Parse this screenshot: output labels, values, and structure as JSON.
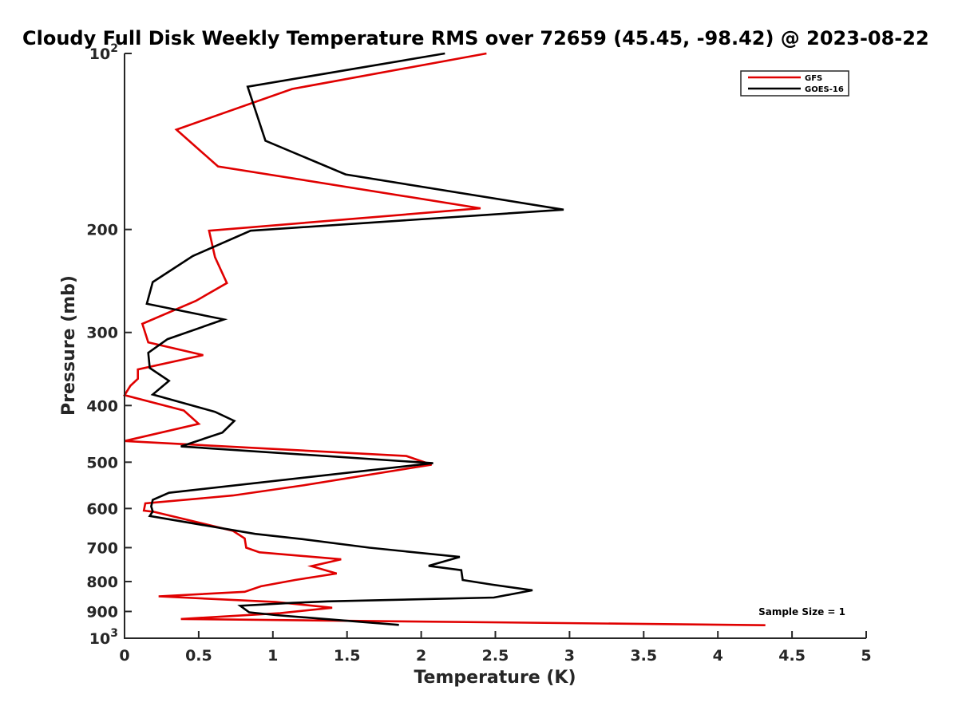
{
  "chart_data": {
    "type": "line",
    "title": "Cloudy Full Disk Weekly Temperature RMS over 72659 (45.45, -98.42) @ 2023-08-22",
    "xlabel": "Temperature (K)",
    "ylabel": "Pressure (mb)",
    "xlim": [
      0,
      5
    ],
    "ylim": [
      100,
      1000
    ],
    "y_scale": "log",
    "y_reversed": true,
    "x_ticks": [
      "0",
      "0.5",
      "1",
      "1.5",
      "2",
      "2.5",
      "3",
      "3.5",
      "4",
      "4.5",
      "5"
    ],
    "y_ticks": [
      {
        "value": 100,
        "base": "10",
        "exp": "2"
      },
      {
        "value": 200,
        "label": "200"
      },
      {
        "value": 300,
        "label": "300"
      },
      {
        "value": 400,
        "label": "400"
      },
      {
        "value": 500,
        "label": "500"
      },
      {
        "value": 600,
        "label": "600"
      },
      {
        "value": 700,
        "label": "700"
      },
      {
        "value": 800,
        "label": "800"
      },
      {
        "value": 900,
        "label": "900"
      },
      {
        "value": 1000,
        "base": "10",
        "exp": "3"
      }
    ],
    "legend_position": "top-right",
    "annotation": "Sample Size = 1",
    "grid": false,
    "series": [
      {
        "name": "GFS",
        "color": "#e00000",
        "points": [
          [
            2.44,
            100
          ],
          [
            1.13,
            115
          ],
          [
            0.35,
            135
          ],
          [
            0.63,
            156
          ],
          [
            2.4,
            184
          ],
          [
            0.57,
            201
          ],
          [
            0.61,
            223
          ],
          [
            0.69,
            247
          ],
          [
            0.48,
            265
          ],
          [
            0.12,
            290
          ],
          [
            0.16,
            312
          ],
          [
            0.53,
            328
          ],
          [
            0.09,
            347
          ],
          [
            0.09,
            360
          ],
          [
            0.04,
            370
          ],
          [
            0.0,
            384
          ],
          [
            0.4,
            408
          ],
          [
            0.5,
            430
          ],
          [
            0.0,
            460
          ],
          [
            1.9,
            488
          ],
          [
            2.07,
            505
          ],
          [
            1.2,
            548
          ],
          [
            0.73,
            570
          ],
          [
            0.14,
            588
          ],
          [
            0.13,
            605
          ],
          [
            0.2,
            608
          ],
          [
            0.73,
            655
          ],
          [
            0.81,
            675
          ],
          [
            0.82,
            700
          ],
          [
            0.91,
            713
          ],
          [
            1.46,
            733
          ],
          [
            1.26,
            753
          ],
          [
            1.43,
            775
          ],
          [
            1.15,
            795
          ],
          [
            0.92,
            815
          ],
          [
            0.81,
            833
          ],
          [
            0.23,
            848
          ],
          [
            1.02,
            867
          ],
          [
            1.4,
            887
          ],
          [
            1.05,
            906
          ],
          [
            0.38,
            927
          ],
          [
            4.32,
            950
          ]
        ]
      },
      {
        "name": "GOES-16",
        "color": "#000000",
        "points": [
          [
            2.16,
            100
          ],
          [
            0.83,
            114
          ],
          [
            0.95,
            141
          ],
          [
            1.49,
            161
          ],
          [
            2.96,
            185
          ],
          [
            0.85,
            201
          ],
          [
            0.46,
            222
          ],
          [
            0.19,
            246
          ],
          [
            0.15,
            268
          ],
          [
            0.67,
            285
          ],
          [
            0.29,
            308
          ],
          [
            0.16,
            325
          ],
          [
            0.17,
            345
          ],
          [
            0.3,
            363
          ],
          [
            0.19,
            383
          ],
          [
            0.61,
            410
          ],
          [
            0.74,
            425
          ],
          [
            0.66,
            445
          ],
          [
            0.38,
            470
          ],
          [
            2.08,
            502
          ],
          [
            0.3,
            564
          ],
          [
            0.19,
            580
          ],
          [
            0.18,
            595
          ],
          [
            0.19,
            607
          ],
          [
            0.17,
            618
          ],
          [
            0.88,
            663
          ],
          [
            1.2,
            677
          ],
          [
            1.65,
            700
          ],
          [
            2.26,
            726
          ],
          [
            2.05,
            752
          ],
          [
            2.27,
            765
          ],
          [
            2.28,
            795
          ],
          [
            2.48,
            810
          ],
          [
            2.75,
            828
          ],
          [
            2.49,
            852
          ],
          [
            1.37,
            865
          ],
          [
            1.13,
            870
          ],
          [
            0.78,
            880
          ],
          [
            0.84,
            903
          ],
          [
            1.02,
            913
          ],
          [
            1.85,
            949
          ]
        ]
      }
    ]
  }
}
